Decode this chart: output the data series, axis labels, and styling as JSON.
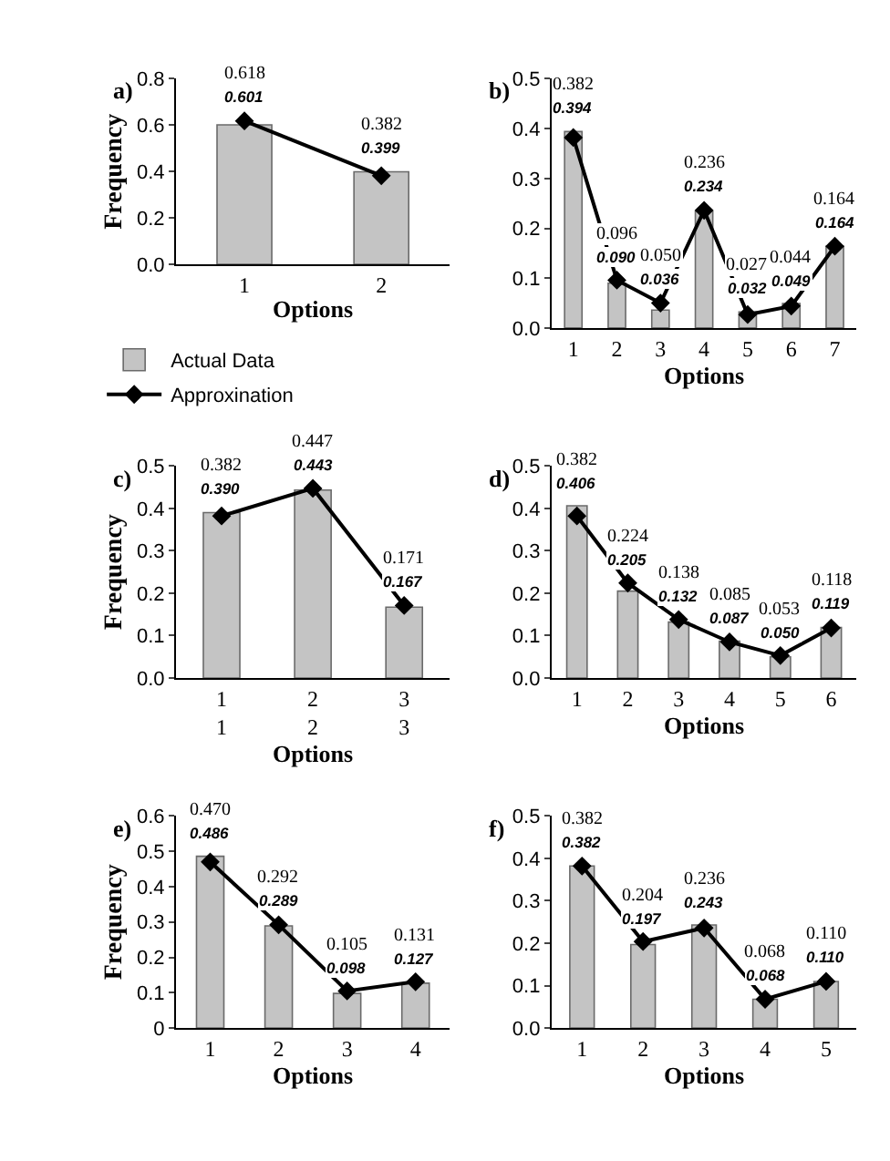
{
  "chart_data": [
    {
      "type": "bar",
      "title": "a)",
      "xlabel": "Options",
      "ylabel": "Frequency",
      "categories": [
        "1",
        "2"
      ],
      "ylim": [
        0,
        0.8
      ],
      "yticks": [
        {
          "value": 0,
          "label": "0.0"
        },
        {
          "value": 0.2,
          "label": "0.2"
        },
        {
          "value": 0.4,
          "label": "0.4"
        },
        {
          "value": 0.6,
          "label": "0.6"
        },
        {
          "value": 0.8,
          "label": "0.8"
        }
      ],
      "legend": "bottom",
      "marker": "diamond",
      "series": [
        {
          "name": "Actual Data",
          "color": "#c4c4c4",
          "values": [
            0.601,
            0.399
          ],
          "value_labels": [
            "0.601",
            "0.399"
          ]
        },
        {
          "name": "Approxination",
          "type": "line",
          "color": "#000000",
          "values": [
            0.618,
            0.382
          ],
          "value_labels": [
            "0.618",
            "0.382"
          ]
        }
      ]
    },
    {
      "type": "bar",
      "title": "b)",
      "xlabel": "Options",
      "categories": [
        "1",
        "2",
        "3",
        "4",
        "5",
        "6",
        "7"
      ],
      "ylim": [
        0,
        0.5
      ],
      "yticks": [
        {
          "value": 0,
          "label": "0.0"
        },
        {
          "value": 0.1,
          "label": "0.1"
        },
        {
          "value": 0.2,
          "label": "0.2"
        },
        {
          "value": 0.3,
          "label": "0.3"
        },
        {
          "value": 0.4,
          "label": "0.4"
        },
        {
          "value": 0.5,
          "label": "0.5"
        }
      ],
      "marker": "diamond",
      "series": [
        {
          "color": "#c4c4c4",
          "values": [
            0.394,
            0.09,
            0.036,
            0.234,
            0.032,
            0.049,
            0.164
          ],
          "value_labels": [
            "0.394",
            "0.090",
            "0.036",
            "0.234",
            "0.032",
            "0.049",
            "0.164"
          ]
        },
        {
          "type": "line",
          "color": "#000000",
          "values": [
            0.382,
            0.096,
            0.05,
            0.236,
            0.027,
            0.044,
            0.164
          ],
          "value_labels": [
            "0.382",
            "0.096",
            "0.050",
            "0.236",
            "0.027",
            "0.044",
            "0.164"
          ]
        }
      ]
    },
    {
      "type": "bar",
      "title": "c)",
      "xlabel": "Options",
      "ylabel": "Frequency",
      "categories": [
        "1\n1",
        "2\n2",
        "3\n3"
      ],
      "ylim": [
        0,
        0.5
      ],
      "yticks": [
        {
          "value": 0,
          "label": "0.0"
        },
        {
          "value": 0.1,
          "label": "0.1"
        },
        {
          "value": 0.2,
          "label": "0.2"
        },
        {
          "value": 0.3,
          "label": "0.3"
        },
        {
          "value": 0.4,
          "label": "0.4"
        },
        {
          "value": 0.5,
          "label": "0.5"
        }
      ],
      "marker": "diamond",
      "series": [
        {
          "color": "#c4c4c4",
          "values": [
            0.39,
            0.443,
            0.167
          ],
          "value_labels": [
            "0.390",
            "0.443",
            "0.167"
          ]
        },
        {
          "type": "line",
          "color": "#000000",
          "values": [
            0.382,
            0.447,
            0.171
          ],
          "value_labels": [
            "0.382",
            "0.447",
            "0.171"
          ]
        }
      ]
    },
    {
      "type": "bar",
      "title": "d)",
      "xlabel": "Options",
      "categories": [
        "1",
        "2",
        "3",
        "4",
        "5",
        "6"
      ],
      "ylim": [
        0,
        0.5
      ],
      "yticks": [
        {
          "value": 0,
          "label": "0.0"
        },
        {
          "value": 0.1,
          "label": "0.1"
        },
        {
          "value": 0.2,
          "label": "0.2"
        },
        {
          "value": 0.3,
          "label": "0.3"
        },
        {
          "value": 0.4,
          "label": "0.4"
        },
        {
          "value": 0.5,
          "label": "0.5"
        }
      ],
      "marker": "diamond",
      "series": [
        {
          "color": "#c4c4c4",
          "values": [
            0.406,
            0.205,
            0.132,
            0.087,
            0.05,
            0.119
          ],
          "value_labels": [
            "0.406",
            "0.205",
            "0.132",
            "0.087",
            "0.050",
            "0.119"
          ]
        },
        {
          "type": "line",
          "color": "#000000",
          "values": [
            0.382,
            0.224,
            0.138,
            0.085,
            0.053,
            0.118
          ],
          "value_labels": [
            "0.382",
            "0.224",
            "0.138",
            "0.085",
            "0.053",
            "0.118"
          ]
        }
      ]
    },
    {
      "type": "bar",
      "title": "e)",
      "xlabel": "Options",
      "ylabel": "Frequency",
      "categories": [
        "1",
        "2",
        "3",
        "4"
      ],
      "ylim": [
        0,
        0.6
      ],
      "yticks": [
        0,
        0.1,
        0.2,
        0.3,
        0.4,
        0.5,
        0.6
      ],
      "marker": "diamond",
      "series": [
        {
          "color": "#c4c4c4",
          "values": [
            0.486,
            0.289,
            0.098,
            0.127
          ],
          "value_labels": [
            "0.486",
            "0.289",
            "0.098",
            "0.127"
          ]
        },
        {
          "type": "line",
          "color": "#000000",
          "values": [
            0.47,
            0.292,
            0.105,
            0.131
          ],
          "value_labels": [
            "0.470",
            "0.292",
            "0.105",
            "0.131"
          ]
        }
      ]
    },
    {
      "type": "bar",
      "title": "f)",
      "xlabel": "Options",
      "categories": [
        "1",
        "2",
        "3",
        "4",
        "5"
      ],
      "ylim": [
        0,
        0.5
      ],
      "yticks": [
        {
          "value": 0,
          "label": "0.0"
        },
        {
          "value": 0.1,
          "label": "0.1"
        },
        {
          "value": 0.2,
          "label": "0.2"
        },
        {
          "value": 0.3,
          "label": "0.3"
        },
        {
          "value": 0.4,
          "label": "0.4"
        },
        {
          "value": 0.5,
          "label": "0.5"
        }
      ],
      "marker": "diamond",
      "series": [
        {
          "color": "#c4c4c4",
          "values": [
            0.382,
            0.197,
            0.243,
            0.068,
            0.11
          ],
          "value_labels": [
            "0.382",
            "0.197",
            "0.243",
            "0.068",
            "0.110"
          ]
        },
        {
          "type": "line",
          "color": "#000000",
          "values": [
            0.382,
            0.204,
            0.236,
            0.068,
            0.11
          ],
          "value_labels": [
            "0.382",
            "0.204",
            "0.236",
            "0.068",
            "0.110"
          ]
        }
      ]
    }
  ]
}
